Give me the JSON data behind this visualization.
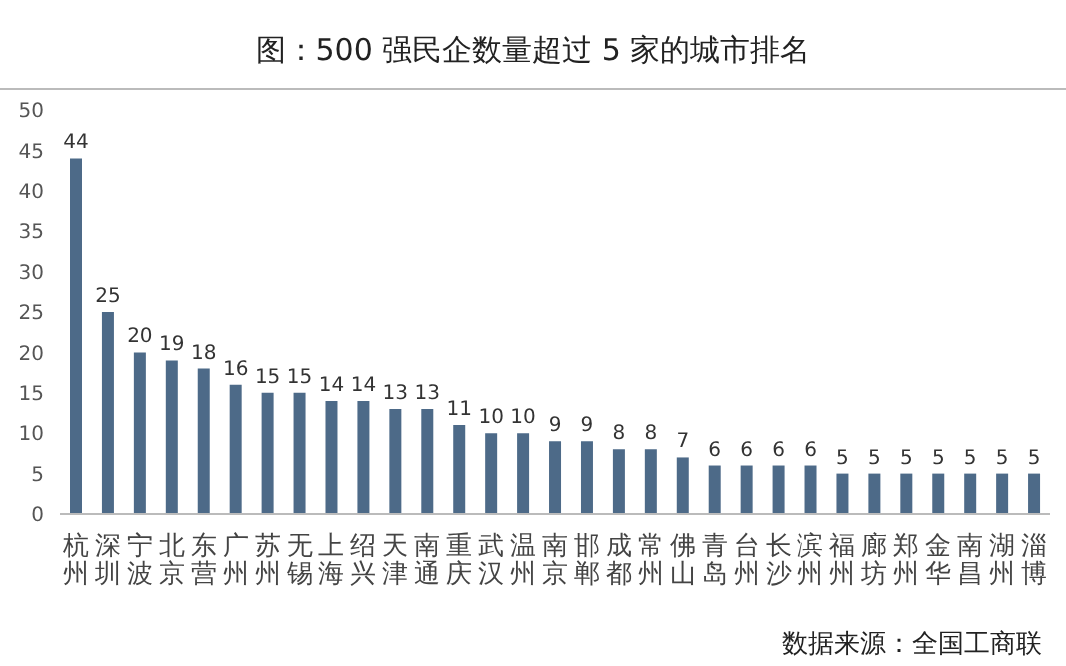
{
  "chart_data": {
    "type": "bar",
    "title": "图：500 强民企数量超过 5 家的城市排名",
    "categories": [
      "杭州",
      "深圳",
      "宁波",
      "北京",
      "东营",
      "广州",
      "苏州",
      "无锡",
      "上海",
      "绍兴",
      "天津",
      "南通",
      "重庆",
      "武汉",
      "温州",
      "南京",
      "邯郸",
      "成都",
      "常州",
      "佛山",
      "青岛",
      "台州",
      "长沙",
      "滨州",
      "福州",
      "廊坊",
      "郑州",
      "金华",
      "南昌",
      "湖州",
      "淄博"
    ],
    "values": [
      44,
      25,
      20,
      19,
      18,
      16,
      15,
      15,
      14,
      14,
      13,
      13,
      11,
      10,
      10,
      9,
      9,
      8,
      8,
      7,
      6,
      6,
      6,
      6,
      5,
      5,
      5,
      5,
      5,
      5,
      5
    ],
    "color": "#4d6a88",
    "ylim": [
      0,
      50
    ],
    "yticks": [
      0,
      5,
      10,
      15,
      20,
      25,
      30,
      35,
      40,
      45,
      50
    ],
    "data_labels": true,
    "annotations": [
      "数据来源：全国工商联"
    ]
  }
}
